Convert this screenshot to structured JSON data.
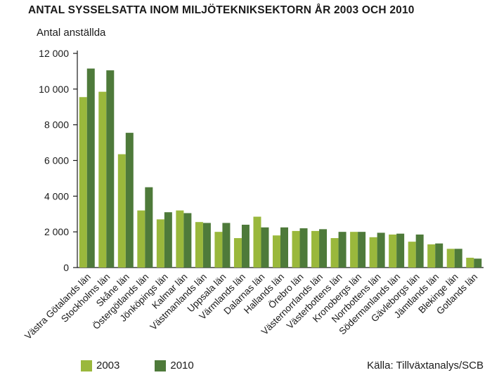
{
  "chart_data": {
    "type": "bar",
    "title": "ANTAL SYSSELSATTA INOM MILJÖTEKNIKSEKTORN ÅR 2003 OCH 2010",
    "ylabel": "Antal anställda",
    "xlabel": "",
    "ylim": [
      0,
      12000
    ],
    "yticks": [
      0,
      2000,
      4000,
      6000,
      8000,
      10000,
      12000
    ],
    "ytick_labels": [
      "0",
      "2 000",
      "4 000",
      "6 000",
      "8 000",
      "10 000",
      "12 000"
    ],
    "grid": false,
    "legend_position": "bottom-left",
    "categories": [
      "Västra Götalands län",
      "Stockholms län",
      "Skåne län",
      "Östergötlands län",
      "Jönköpings län",
      "Kalmar län",
      "Västmanlands län",
      "Uppsala län",
      "Värmlands län",
      "Dalarnas län",
      "Hallands län",
      "Örebro län",
      "Västernorrlands län",
      "Västerbottens län",
      "Kronobergs län",
      "Norrbottens län",
      "Södermanlands län",
      "Gävleborgs län",
      "Jämtlands län",
      "Blekinge län",
      "Gotlands län"
    ],
    "series": [
      {
        "name": "2003",
        "color": "#9ab83c",
        "values": [
          9550,
          9850,
          6350,
          3200,
          2700,
          3200,
          2550,
          2000,
          1650,
          2850,
          1800,
          2050,
          2050,
          1650,
          2000,
          1700,
          1850,
          1450,
          1300,
          1050,
          550
        ]
      },
      {
        "name": "2010",
        "color": "#4e7a3a",
        "values": [
          11150,
          11050,
          7550,
          4500,
          3100,
          3050,
          2500,
          2500,
          2400,
          2250,
          2250,
          2200,
          2150,
          2000,
          2000,
          1950,
          1900,
          1850,
          1350,
          1050,
          500
        ]
      }
    ]
  },
  "source": "Källa: Tillväxtanalys/SCB"
}
